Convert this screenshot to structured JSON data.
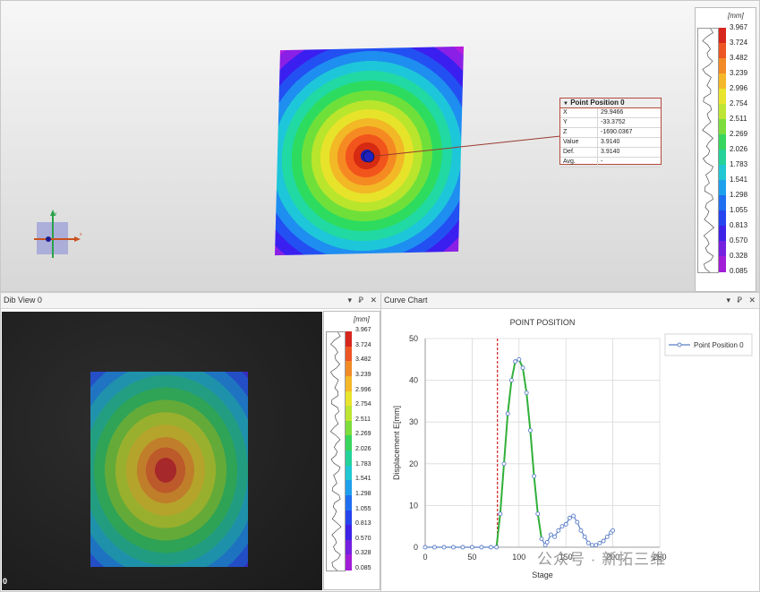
{
  "legend": {
    "unit": "[mm]",
    "ticks": [
      "3.967",
      "3.724",
      "3.482",
      "3.239",
      "2.996",
      "2.754",
      "2.511",
      "2.269",
      "2.026",
      "1.783",
      "1.541",
      "1.298",
      "1.055",
      "0.813",
      "0.570",
      "0.328",
      "0.085"
    ],
    "colors": [
      "#d7261e",
      "#ee5524",
      "#f28a26",
      "#f4b82a",
      "#e9e42e",
      "#bde534",
      "#7cdd3c",
      "#39d65e",
      "#24d29a",
      "#21c7d2",
      "#1fa0ec",
      "#1f6ff0",
      "#2745ee",
      "#3f22e8",
      "#7620e0",
      "#a21dd8"
    ]
  },
  "point_popup": {
    "title": "Point Position 0",
    "rows": [
      {
        "k": "X",
        "v": "29.9466"
      },
      {
        "k": "Y",
        "v": "-33.3752"
      },
      {
        "k": "Z",
        "v": "-1690.0367"
      },
      {
        "k": "Value",
        "v": "3.9140"
      },
      {
        "k": "Def.",
        "v": "3.9140"
      },
      {
        "k": "Avg.",
        "v": "-"
      }
    ]
  },
  "axis_widget": {
    "x_label": "x",
    "y_label": "y"
  },
  "dib_panel": {
    "title": "Dib View 0",
    "corner_label": "0",
    "controls": [
      "▾",
      "Ꝑ",
      "✕"
    ]
  },
  "curve_panel": {
    "title": "Curve Chart",
    "controls": [
      "▾",
      "Ꝑ",
      "✕"
    ]
  },
  "watermark": "公众号 · 新拓三维",
  "chart_data": {
    "type": "line",
    "title": "POINT POSITION",
    "xlabel": "Stage",
    "ylabel": "Displacement E[mm]",
    "xlim": [
      0,
      250
    ],
    "ylim": [
      0,
      50
    ],
    "xticks": [
      0,
      50,
      100,
      150,
      200,
      250
    ],
    "yticks": [
      0,
      10,
      20,
      30,
      40,
      50
    ],
    "grid": true,
    "legend_position": "right",
    "marker_line_x": 77,
    "series": [
      {
        "name": "Point Position 0",
        "color": "#5b7fc8",
        "fit_color": "#31b03a",
        "x": [
          0,
          10,
          20,
          30,
          40,
          50,
          60,
          70,
          76,
          80,
          84,
          88,
          92,
          96,
          100,
          104,
          108,
          112,
          116,
          120,
          124,
          128,
          130,
          134,
          138,
          142,
          146,
          150,
          154,
          158,
          162,
          166,
          170,
          174,
          178,
          182,
          186,
          190,
          194,
          198,
          200
        ],
        "y": [
          0,
          0,
          0,
          0,
          0,
          0,
          0,
          0,
          0,
          8,
          20,
          32,
          40,
          44.5,
          45,
          43,
          37,
          28,
          17,
          8,
          2,
          0.5,
          1.2,
          3,
          2.5,
          4,
          5,
          5.5,
          7,
          7.5,
          6,
          4,
          2.5,
          1,
          0.5,
          0.5,
          1,
          1.5,
          2.5,
          3.5,
          4
        ]
      }
    ]
  }
}
